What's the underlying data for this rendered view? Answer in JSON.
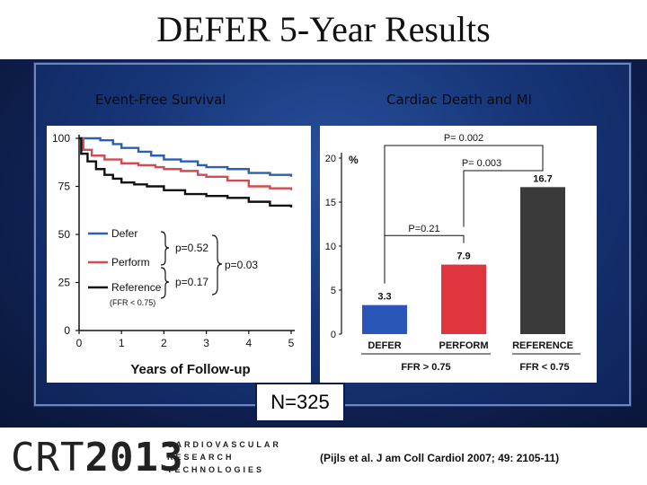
{
  "slide": {
    "title": "DEFER 5-Year Results",
    "left_subtitle": "Event-Free Survival",
    "right_subtitle": "Cardiac Death and MI",
    "n_label": "N=325",
    "footer": {
      "logo_text": "CRT",
      "logo_year": "2013",
      "logo_lines": [
        "CARDIOVASCULAR",
        "RESEARCH",
        "TECHNOLOGIES"
      ],
      "citation": "(Pijls et al. J am Coll Cardiol 2007; 49: 2105-11)"
    }
  },
  "chart_data": [
    {
      "type": "line",
      "title": "Event-Free Survival",
      "xlabel": "Years of Follow-up",
      "ylabel": "",
      "xlim": [
        0,
        5
      ],
      "ylim": [
        0,
        100
      ],
      "xticks": [
        "0",
        "1",
        "2",
        "3",
        "4",
        "5"
      ],
      "yticks": [
        "0",
        "25",
        "50",
        "75",
        "100"
      ],
      "series": [
        {
          "name": "Defer",
          "color": "#2b5fb4",
          "x": [
            0,
            0.15,
            0.5,
            0.8,
            1.0,
            1.4,
            1.7,
            2.0,
            2.4,
            2.8,
            3.0,
            3.5,
            4.0,
            4.5,
            5.0
          ],
          "y": [
            100,
            100,
            99,
            97,
            95,
            93,
            91,
            89,
            88,
            86,
            85,
            84,
            82,
            81,
            80
          ]
        },
        {
          "name": "Perform",
          "color": "#d24b52",
          "x": [
            0,
            0.1,
            0.3,
            0.6,
            1.0,
            1.4,
            1.8,
            2.0,
            2.4,
            2.8,
            3.0,
            3.5,
            4.0,
            4.5,
            5.0
          ],
          "y": [
            100,
            94,
            91,
            89,
            87,
            86,
            85,
            84,
            83,
            81,
            80,
            78,
            75,
            74,
            73
          ]
        },
        {
          "name": "Reference",
          "color": "#111111",
          "x": [
            0,
            0.05,
            0.2,
            0.4,
            0.6,
            0.8,
            1.0,
            1.3,
            1.6,
            2.0,
            2.5,
            3.0,
            3.5,
            4.0,
            4.5,
            5.0
          ],
          "y": [
            100,
            92,
            88,
            84,
            81,
            79,
            77,
            76,
            75,
            73,
            71,
            70,
            69,
            67,
            65,
            64
          ]
        }
      ],
      "legend": {
        "entries": [
          "Defer",
          "Perform",
          "Reference"
        ],
        "reference_note": "(FFR < 0.75)",
        "p_values": [
          "p=0.52",
          "p=0.17",
          "p=0.03"
        ]
      }
    },
    {
      "type": "bar",
      "title": "Cardiac Death and MI",
      "ylabel": "%",
      "ylim": [
        0,
        20
      ],
      "yticks": [
        "0",
        "5",
        "10",
        "15",
        "20"
      ],
      "categories": [
        "DEFER",
        "PERFORM",
        "REFERENCE"
      ],
      "values": [
        3.3,
        7.9,
        16.7
      ],
      "value_labels": [
        "3.3",
        "7.9",
        "16.7"
      ],
      "colors": [
        "#2a56b8",
        "#e0353f",
        "#3a3a3a"
      ],
      "group_labels": [
        "FFR > 0.75",
        "FFR < 0.75"
      ],
      "p_values": [
        "P= 0.002",
        "P= 0.003",
        "P=0.21"
      ]
    }
  ]
}
